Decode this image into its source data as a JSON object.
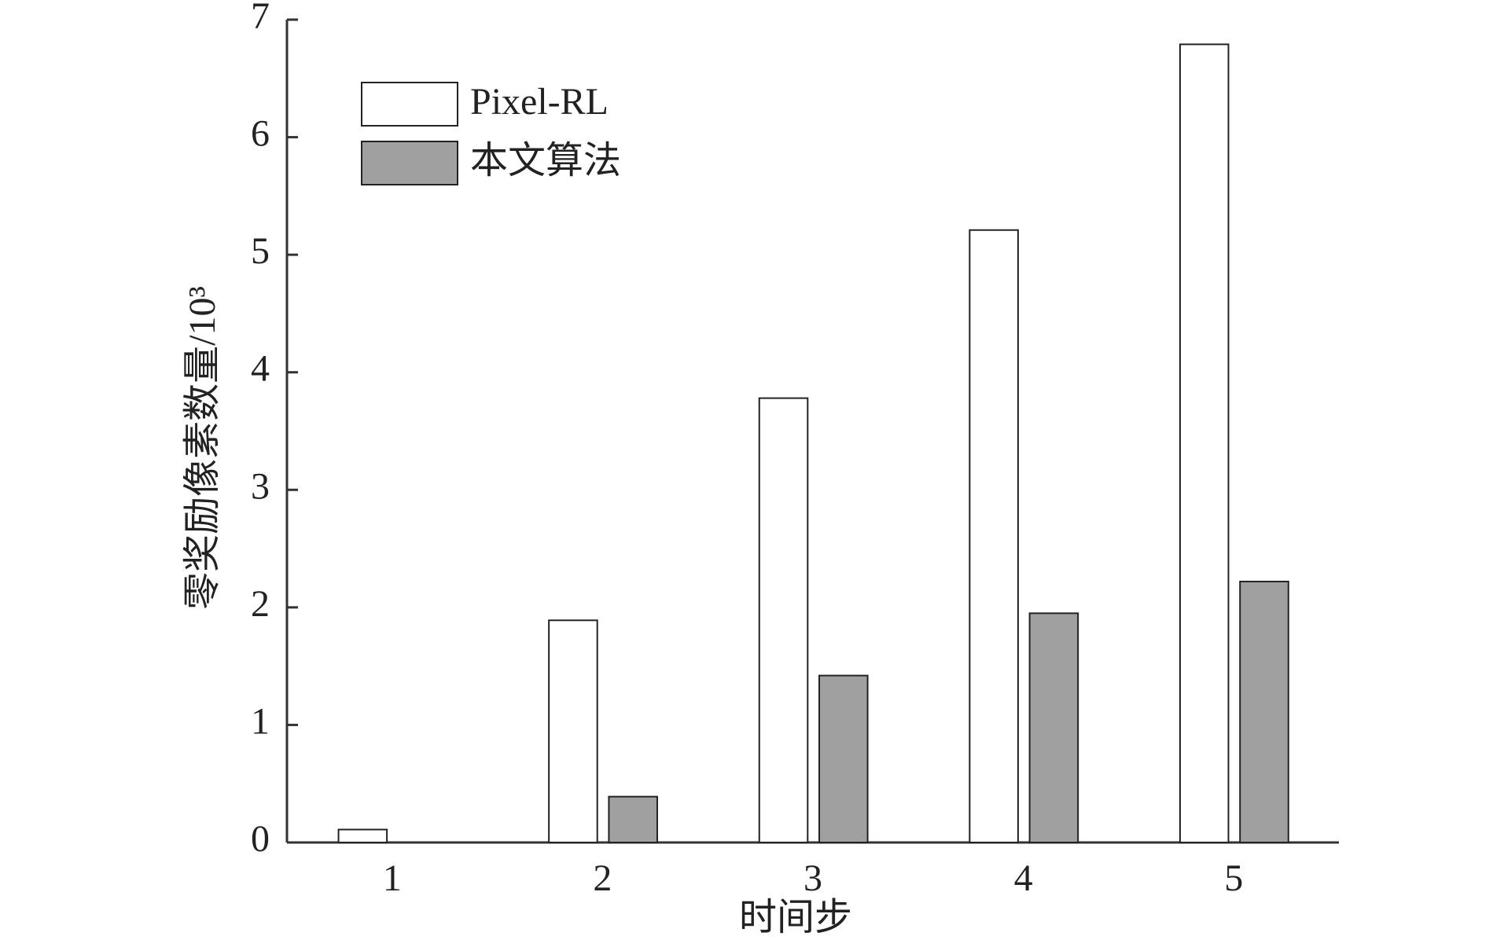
{
  "chart_data": {
    "type": "bar",
    "categories": [
      "1",
      "2",
      "3",
      "4",
      "5"
    ],
    "series": [
      {
        "name": "Pixel-RL",
        "color": "#ffffff",
        "values": [
          0.11,
          1.89,
          3.78,
          5.21,
          6.79
        ]
      },
      {
        "name": "本文算法",
        "color": "#a0a0a0",
        "values": [
          0,
          0.39,
          1.42,
          1.95,
          2.22
        ]
      }
    ],
    "x_label": "时间步",
    "y_label": "零奖励像素数量/10³",
    "ylim": [
      0,
      7
    ],
    "yticks": [
      0,
      1,
      2,
      3,
      4,
      5,
      6,
      7
    ],
    "legend": "upper-left",
    "grid": false
  }
}
